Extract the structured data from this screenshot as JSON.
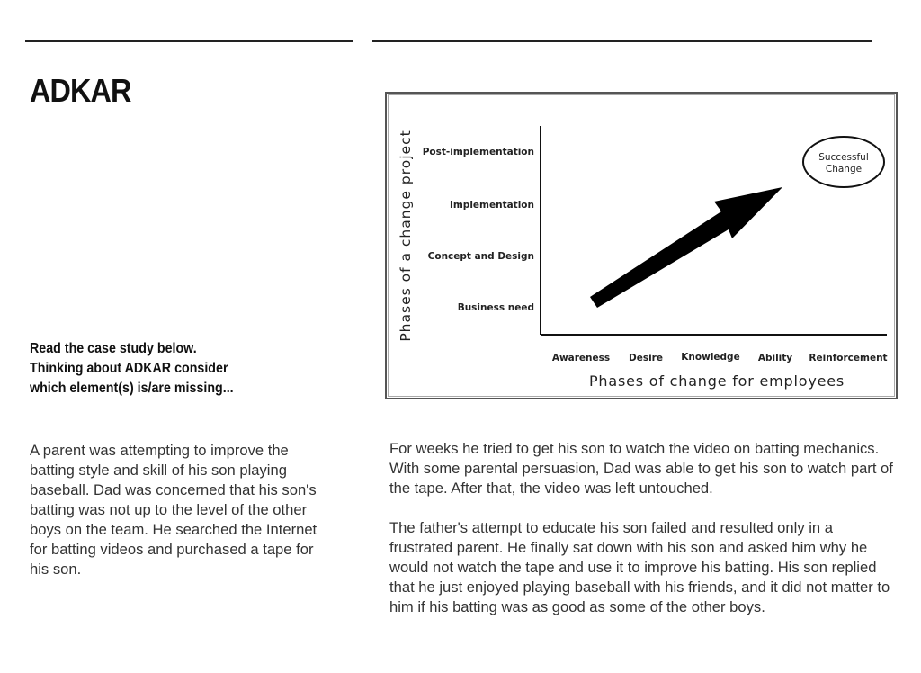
{
  "slide": {
    "title": "ADKAR",
    "prompt_lines": [
      "Read the case study below.",
      "Thinking about ADKAR consider",
      "which element(s) is/are missing..."
    ],
    "paragraph_1": "A parent was attempting to improve the batting style and skill of his son playing baseball. Dad was concerned that his son's batting was not up to the level of the other boys on the team. He searched the Internet for batting videos and purchased a tape for his son.",
    "paragraph_2": "For weeks he tried to get his son to watch the video on batting mechanics. With some parental persuasion, Dad was able to get his son to watch part of the tape. After that, the video was left untouched.",
    "paragraph_3": "The father's attempt to educate his son failed and resulted only in a frustrated parent. He finally sat down with his son and asked him why he would not watch the tape and use it to improve his batting. His son replied that he just enjoyed playing baseball with his friends, and it did not matter to him if his batting was as good as some of the other boys."
  },
  "diagram": {
    "y_axis_label": "Phases of a change project",
    "x_axis_label": "Phases of change for employees",
    "y_labels": [
      "Post-implementation",
      "Implementation",
      "Concept and Design",
      "Business need"
    ],
    "x_labels": [
      "Awareness",
      "Desire",
      "Knowledge",
      "Ability",
      "Reinforcement"
    ],
    "goal_line_1": "Successful",
    "goal_line_2": "Change"
  }
}
